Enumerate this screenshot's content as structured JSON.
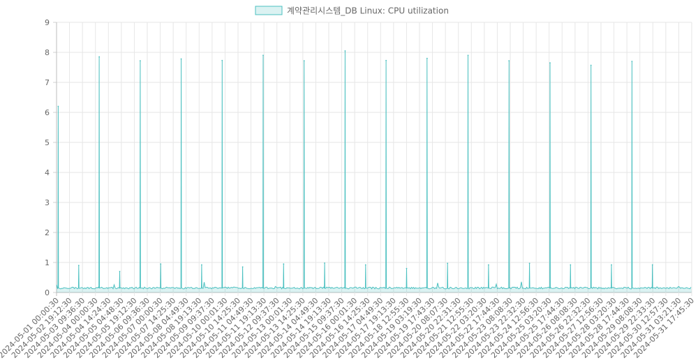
{
  "chart_data": {
    "type": "line",
    "title": "",
    "xlabel": "",
    "ylabel": "",
    "ylim": [
      0,
      9
    ],
    "yticks": [
      "0",
      "1",
      "2",
      "3",
      "4",
      "5",
      "6",
      "7",
      "8",
      "9"
    ],
    "grid": true,
    "legend_position": "top",
    "x_tick_labels": [
      "2024-05-01 00:00:30",
      "2024-05-02 19:12:30",
      "2024-05-03 09:36:30",
      "2024-05-04 00:00:30",
      "2024-05-04 14:24:30",
      "2024-05-05 04:48:30",
      "2024-05-05 19:12:30",
      "2024-05-06 09:36:30",
      "2024-05-07 00:00:30",
      "2024-05-07 14:25:30",
      "2024-05-08 04:49:30",
      "2024-05-08 19:13:30",
      "2024-05-09 09:37:30",
      "2024-05-10 00:01:30",
      "2024-05-10 14:25:30",
      "2024-05-11 04:49:30",
      "2024-05-11 19:13:30",
      "2024-05-12 09:37:30",
      "2024-05-13 00:01:30",
      "2024-05-13 14:25:30",
      "2024-05-14 04:49:30",
      "2024-05-14 19:13:30",
      "2024-05-15 09:37:30",
      "2024-05-16 00:01:30",
      "2024-05-16 14:25:30",
      "2024-05-17 04:49:30",
      "2024-05-17 19:13:30",
      "2024-05-18 12:55:30",
      "2024-05-19 03:19:30",
      "2024-05-19 17:43:30",
      "2024-05-20 08:07:30",
      "2024-05-20 22:31:30",
      "2024-05-21 12:55:30",
      "2024-05-22 03:20:30",
      "2024-05-22 17:44:30",
      "2024-05-23 08:08:30",
      "2024-05-23 22:32:30",
      "2024-05-24 12:56:30",
      "2024-05-25 03:20:30",
      "2024-05-25 17:44:30",
      "2024-05-26 08:08:30",
      "2024-05-26 22:32:30",
      "2024-05-27 12:56:30",
      "2024-05-28 03:20:30",
      "2024-05-28 17:44:30",
      "2024-05-29 08:08:30",
      "2024-05-29 22:33:30",
      "2024-05-30 12:57:30",
      "2024-05-31 03:21:30",
      "2024-05-31 17:45:30"
    ],
    "x_range": [
      "2024-05-01 00:00:30",
      "2024-05-31 23:59:30"
    ],
    "series": [
      {
        "name": "계약관리시스템_DB Linux: CPU utilization",
        "color": "#4bc0c0",
        "fill": "rgba(75,192,192,0.2)",
        "baseline": 0.15,
        "peaks": [
          {
            "x": "2024-05-01 02:00:00",
            "y": 6.2
          },
          {
            "x": "2024-05-02 02:00:00",
            "y": 0.9
          },
          {
            "x": "2024-05-03 02:00:00",
            "y": 7.85
          },
          {
            "x": "2024-05-04 02:00:00",
            "y": 0.7
          },
          {
            "x": "2024-05-05 02:00:00",
            "y": 7.72
          },
          {
            "x": "2024-05-06 02:00:00",
            "y": 0.95
          },
          {
            "x": "2024-05-07 02:00:00",
            "y": 7.78
          },
          {
            "x": "2024-05-08 02:00:00",
            "y": 0.92
          },
          {
            "x": "2024-05-09 02:00:00",
            "y": 7.73
          },
          {
            "x": "2024-05-10 02:00:00",
            "y": 0.85
          },
          {
            "x": "2024-05-11 02:00:00",
            "y": 7.9
          },
          {
            "x": "2024-05-12 02:00:00",
            "y": 0.95
          },
          {
            "x": "2024-05-13 02:00:00",
            "y": 7.72
          },
          {
            "x": "2024-05-14 02:00:00",
            "y": 0.98
          },
          {
            "x": "2024-05-15 02:00:00",
            "y": 8.05
          },
          {
            "x": "2024-05-16 02:00:00",
            "y": 0.92
          },
          {
            "x": "2024-05-17 02:00:00",
            "y": 7.73
          },
          {
            "x": "2024-05-18 02:00:00",
            "y": 0.8
          },
          {
            "x": "2024-05-19 02:00:00",
            "y": 7.8
          },
          {
            "x": "2024-05-20 02:00:00",
            "y": 0.97
          },
          {
            "x": "2024-05-21 02:00:00",
            "y": 7.9
          },
          {
            "x": "2024-05-22 02:00:00",
            "y": 0.92
          },
          {
            "x": "2024-05-23 02:00:00",
            "y": 7.72
          },
          {
            "x": "2024-05-24 02:00:00",
            "y": 0.97
          },
          {
            "x": "2024-05-25 02:00:00",
            "y": 7.65
          },
          {
            "x": "2024-05-26 02:00:00",
            "y": 0.92
          },
          {
            "x": "2024-05-27 02:00:00",
            "y": 7.57
          },
          {
            "x": "2024-05-28 02:00:00",
            "y": 0.92
          },
          {
            "x": "2024-05-29 02:00:00",
            "y": 7.7
          },
          {
            "x": "2024-05-30 02:00:00",
            "y": 0.92
          }
        ]
      }
    ]
  }
}
